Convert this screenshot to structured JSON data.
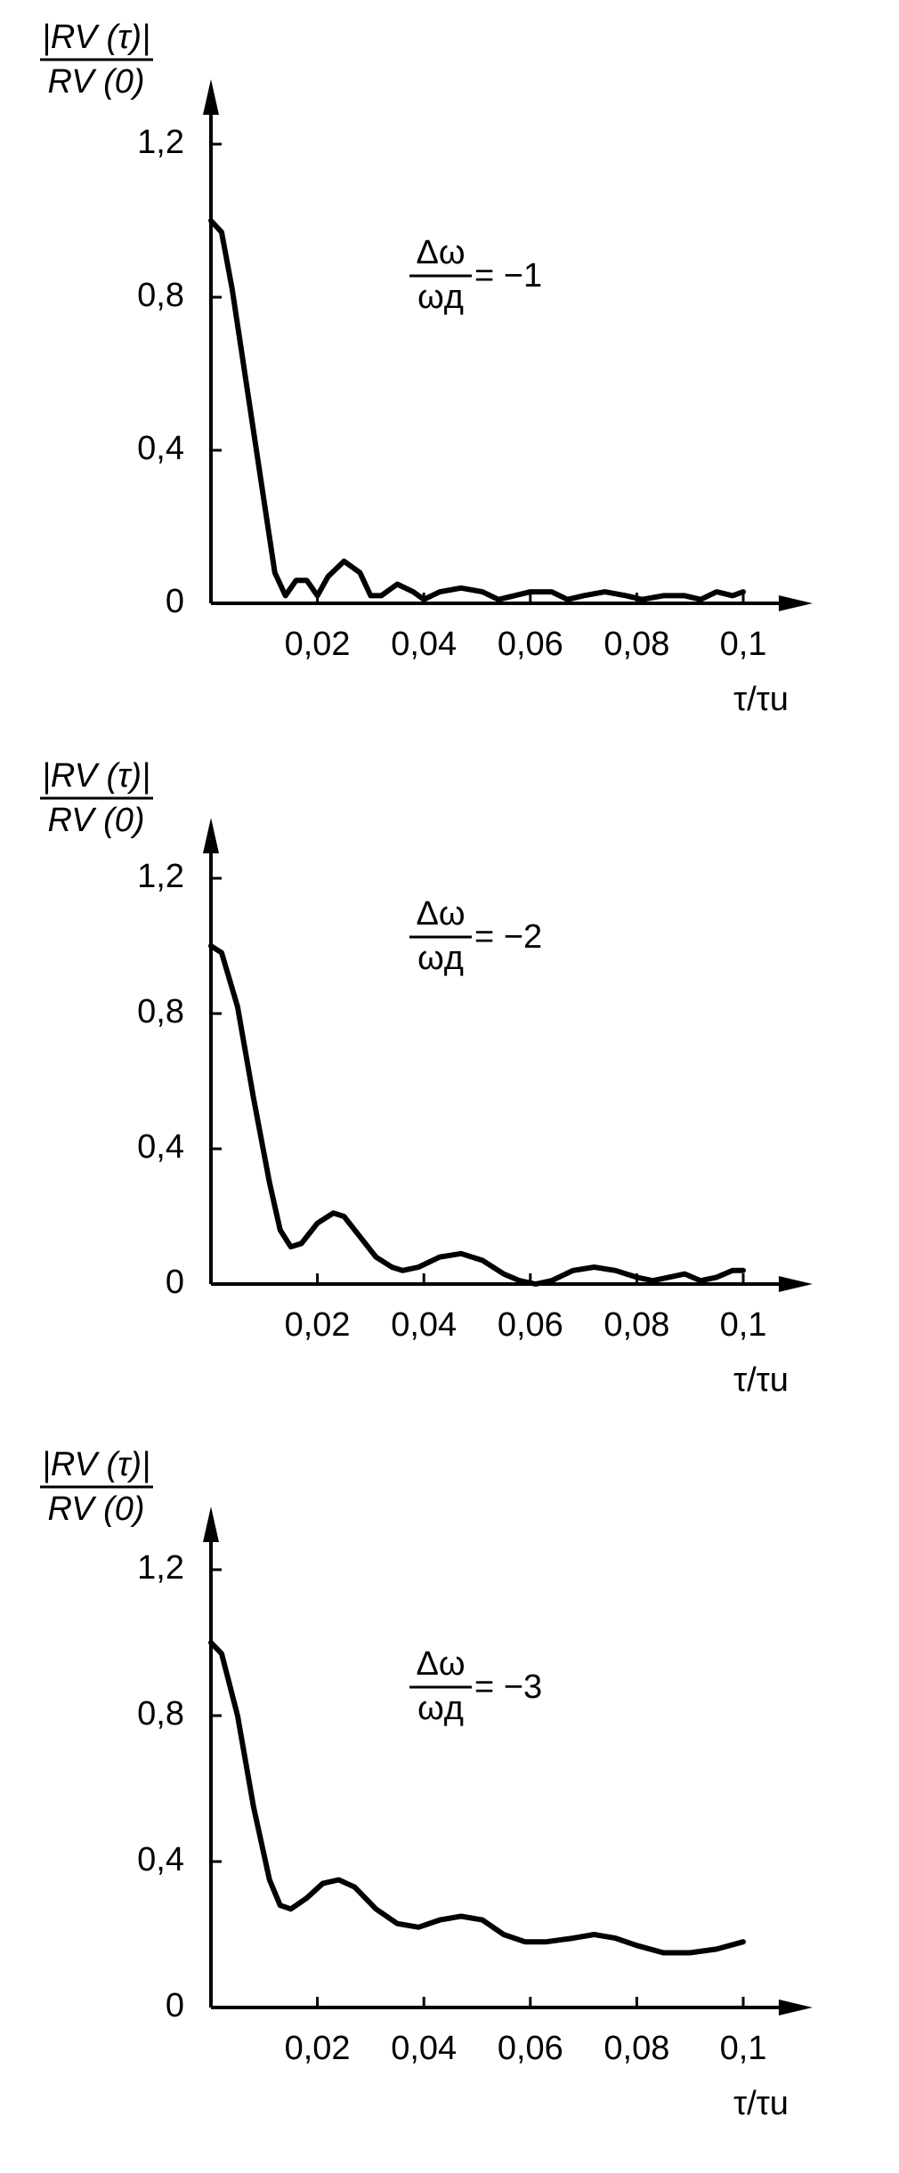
{
  "chart_data": [
    {
      "type": "line",
      "y_label_numerator": "|RV (τ)|",
      "y_label_denominator": "RV (0)",
      "x_label": "τ/τu",
      "annotation": {
        "numerator": "Δω",
        "denominator": "ωд",
        "rhs": "= −1"
      },
      "xlim": [
        0,
        0.105
      ],
      "ylim": [
        0,
        1.3
      ],
      "grid": false,
      "color": "#000000",
      "xticks": [
        {
          "value": 0.02,
          "label": "0,02"
        },
        {
          "value": 0.04,
          "label": "0,04"
        },
        {
          "value": 0.06,
          "label": "0,06"
        },
        {
          "value": 0.08,
          "label": "0,08"
        },
        {
          "value": 0.1,
          "label": "0,1"
        }
      ],
      "yticks": [
        0,
        {
          "value": 0.4,
          "label": "0,4"
        },
        {
          "value": 0.8,
          "label": "0,8"
        },
        {
          "value": 1.2,
          "label": "1,2"
        }
      ],
      "x": [
        0,
        0.002,
        0.004,
        0.008,
        0.012,
        0.014,
        0.016,
        0.018,
        0.02,
        0.022,
        0.025,
        0.028,
        0.03,
        0.032,
        0.035,
        0.038,
        0.04,
        0.043,
        0.047,
        0.051,
        0.054,
        0.057,
        0.06,
        0.064,
        0.067,
        0.07,
        0.074,
        0.078,
        0.081,
        0.085,
        0.089,
        0.092,
        0.095,
        0.098,
        0.1
      ],
      "values": [
        1.0,
        0.97,
        0.82,
        0.45,
        0.08,
        0.02,
        0.06,
        0.06,
        0.02,
        0.07,
        0.11,
        0.08,
        0.02,
        0.02,
        0.05,
        0.03,
        0.01,
        0.03,
        0.04,
        0.03,
        0.01,
        0.02,
        0.03,
        0.03,
        0.01,
        0.02,
        0.03,
        0.02,
        0.01,
        0.02,
        0.02,
        0.01,
        0.03,
        0.02,
        0.03
      ]
    },
    {
      "type": "line",
      "y_label_numerator": "|RV (τ)|",
      "y_label_denominator": "RV (0)",
      "x_label": "τ/τu",
      "annotation": {
        "numerator": "Δω",
        "denominator": "ωд",
        "rhs": "= −2"
      },
      "xlim": [
        0,
        0.105
      ],
      "ylim": [
        0,
        1.3
      ],
      "grid": false,
      "color": "#000000",
      "xticks": [
        {
          "value": 0.02,
          "label": "0,02"
        },
        {
          "value": 0.04,
          "label": "0,04"
        },
        {
          "value": 0.06,
          "label": "0,06"
        },
        {
          "value": 0.08,
          "label": "0,08"
        },
        {
          "value": 0.1,
          "label": "0,1"
        }
      ],
      "yticks": [
        0,
        {
          "value": 0.4,
          "label": "0,4"
        },
        {
          "value": 0.8,
          "label": "0,8"
        },
        {
          "value": 1.2,
          "label": "1,2"
        }
      ],
      "x": [
        0,
        0.002,
        0.005,
        0.008,
        0.011,
        0.013,
        0.015,
        0.017,
        0.02,
        0.023,
        0.025,
        0.028,
        0.031,
        0.034,
        0.036,
        0.039,
        0.043,
        0.047,
        0.051,
        0.055,
        0.058,
        0.061,
        0.064,
        0.068,
        0.072,
        0.076,
        0.08,
        0.083,
        0.086,
        0.089,
        0.092,
        0.095,
        0.098,
        0.1
      ],
      "values": [
        1.0,
        0.98,
        0.82,
        0.55,
        0.3,
        0.16,
        0.11,
        0.12,
        0.18,
        0.21,
        0.2,
        0.14,
        0.08,
        0.05,
        0.04,
        0.05,
        0.08,
        0.09,
        0.07,
        0.03,
        0.01,
        0.0,
        0.01,
        0.04,
        0.05,
        0.04,
        0.02,
        0.01,
        0.02,
        0.03,
        0.01,
        0.02,
        0.04,
        0.04
      ]
    },
    {
      "type": "line",
      "y_label_numerator": "|RV (τ)|",
      "y_label_denominator": "RV (0)",
      "x_label": "τ/τu",
      "annotation": {
        "numerator": "Δω",
        "denominator": "ωд",
        "rhs": "= −3"
      },
      "xlim": [
        0,
        0.105
      ],
      "ylim": [
        0,
        1.3
      ],
      "grid": false,
      "color": "#000000",
      "xticks": [
        {
          "value": 0.02,
          "label": "0,02"
        },
        {
          "value": 0.04,
          "label": "0,04"
        },
        {
          "value": 0.06,
          "label": "0,06"
        },
        {
          "value": 0.08,
          "label": "0,08"
        },
        {
          "value": 0.1,
          "label": "0,1"
        }
      ],
      "yticks": [
        0,
        {
          "value": 0.4,
          "label": "0,4"
        },
        {
          "value": 0.8,
          "label": "0,8"
        },
        {
          "value": 1.2,
          "label": "1,2"
        }
      ],
      "x": [
        0,
        0.002,
        0.005,
        0.008,
        0.011,
        0.013,
        0.015,
        0.018,
        0.021,
        0.024,
        0.027,
        0.031,
        0.035,
        0.039,
        0.043,
        0.047,
        0.051,
        0.055,
        0.059,
        0.063,
        0.068,
        0.072,
        0.076,
        0.08,
        0.085,
        0.09,
        0.095,
        0.1
      ],
      "values": [
        1.0,
        0.97,
        0.8,
        0.55,
        0.35,
        0.28,
        0.27,
        0.3,
        0.34,
        0.35,
        0.33,
        0.27,
        0.23,
        0.22,
        0.24,
        0.25,
        0.24,
        0.2,
        0.18,
        0.18,
        0.19,
        0.2,
        0.19,
        0.17,
        0.15,
        0.15,
        0.16,
        0.18
      ]
    }
  ]
}
